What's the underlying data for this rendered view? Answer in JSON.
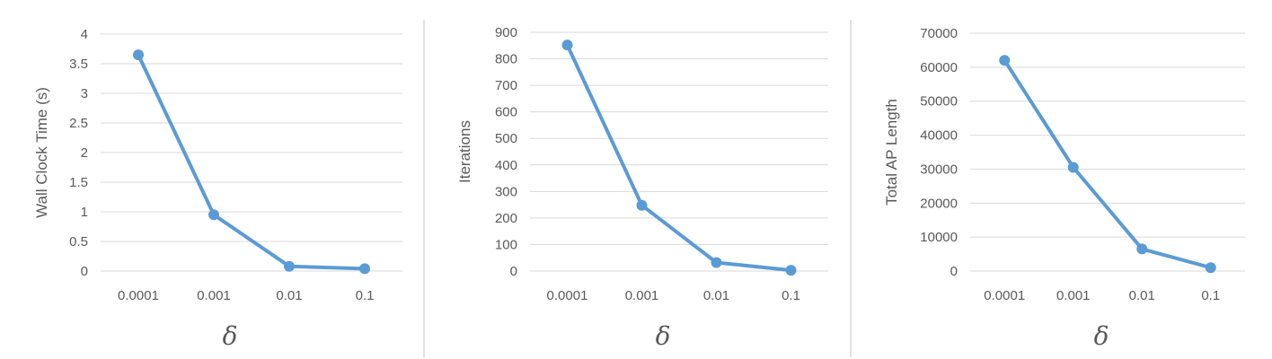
{
  "colors": {
    "series": "#5b9bd5",
    "grid": "#d9d9d9",
    "text": "#595959"
  },
  "chart_data": [
    {
      "type": "line",
      "categories": [
        "0.0001",
        "0.001",
        "0.01",
        "0.1"
      ],
      "series": [
        {
          "values": [
            3.65,
            0.95,
            0.08,
            0.04
          ]
        }
      ],
      "ylabel": "Wall Clock Time (s)",
      "xlabel": "δ",
      "ylim": [
        0,
        4
      ],
      "yticks": [
        "0",
        "0.5",
        "1",
        "1.5",
        "2",
        "2.5",
        "3",
        "3.5",
        "4"
      ],
      "grid": true
    },
    {
      "type": "line",
      "categories": [
        "0.0001",
        "0.001",
        "0.01",
        "0.1"
      ],
      "series": [
        {
          "values": [
            852,
            248,
            32,
            3
          ]
        }
      ],
      "ylabel": "Iterations",
      "xlabel": "δ",
      "ylim": [
        0,
        900
      ],
      "yticks": [
        "0",
        "100",
        "200",
        "300",
        "400",
        "500",
        "600",
        "700",
        "800",
        "900"
      ],
      "grid": true
    },
    {
      "type": "line",
      "categories": [
        "0.0001",
        "0.001",
        "0.01",
        "0.1"
      ],
      "series": [
        {
          "values": [
            62000,
            30500,
            6500,
            1000
          ]
        }
      ],
      "ylabel": "Total AP Length",
      "xlabel": "δ",
      "ylim": [
        0,
        70000
      ],
      "yticks": [
        "0",
        "10000",
        "20000",
        "30000",
        "40000",
        "50000",
        "60000",
        "70000"
      ],
      "grid": true
    }
  ]
}
